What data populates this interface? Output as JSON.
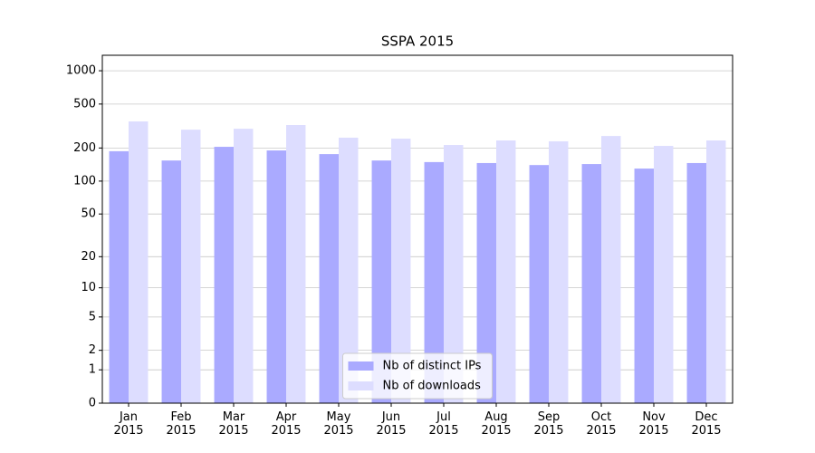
{
  "chart_data": {
    "type": "bar",
    "title": "SSPA 2015",
    "categories": [
      "Jan\n2015",
      "Feb\n2015",
      "Mar\n2015",
      "Apr\n2015",
      "May\n2015",
      "Jun\n2015",
      "Jul\n2015",
      "Aug\n2015",
      "Sep\n2015",
      "Oct\n2015",
      "Nov\n2015",
      "Dec\n2015"
    ],
    "series": [
      {
        "name": "Nb of distinct IPs",
        "color": "#aaaaff",
        "values": [
          187,
          154,
          205,
          190,
          176,
          154,
          149,
          146,
          140,
          143,
          130,
          146
        ]
      },
      {
        "name": "Nb of downloads",
        "color": "#ddddff",
        "values": [
          348,
          293,
          299,
          323,
          248,
          243,
          213,
          234,
          230,
          257,
          209,
          234
        ]
      }
    ],
    "yscale": "log1p",
    "ylim": [
      0,
      1380
    ],
    "yticks": [
      0,
      1,
      2,
      5,
      10,
      20,
      50,
      100,
      200,
      500,
      1000
    ],
    "grid": true,
    "legend": "lower center"
  }
}
